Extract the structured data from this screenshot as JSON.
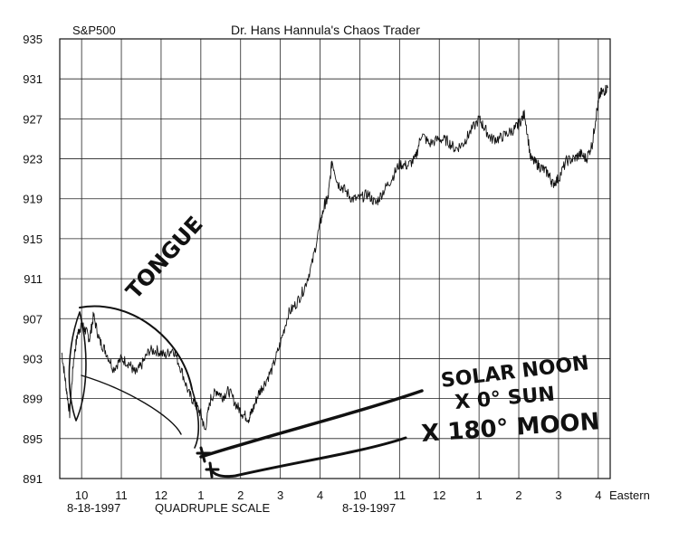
{
  "chart_data": {
    "type": "line",
    "title": "Dr. Hans Hannula's Chaos Trader",
    "instrument": "S&P500",
    "ylim": [
      891,
      935
    ],
    "yticks": [
      935,
      931,
      927,
      923,
      919,
      915,
      911,
      907,
      903,
      899,
      895,
      891
    ],
    "grid": true,
    "xticks": [
      {
        "label": "10",
        "x": 0
      },
      {
        "label": "11",
        "x": 1
      },
      {
        "label": "12",
        "x": 2
      },
      {
        "label": "1",
        "x": 3
      },
      {
        "label": "2",
        "x": 4
      },
      {
        "label": "3",
        "x": 5
      },
      {
        "label": "4",
        "x": 6
      },
      {
        "label": "10",
        "x": 7
      },
      {
        "label": "11",
        "x": 8
      },
      {
        "label": "12",
        "x": 9
      },
      {
        "label": "1",
        "x": 10
      },
      {
        "label": "2",
        "x": 11
      },
      {
        "label": "3",
        "x": 12
      },
      {
        "label": "4",
        "x": 13
      }
    ],
    "xlim": [
      -0.55,
      13.3
    ],
    "x_unit_label": "Eastern",
    "date_labels": [
      "8-18-1997",
      "8-19-1997"
    ],
    "scale_label": "QUADRUPLE SCALE",
    "series": [
      {
        "points": [
          [
            -0.5,
            903.6
          ],
          [
            -0.4,
            900.5
          ],
          [
            -0.3,
            897.5
          ],
          [
            -0.2,
            903.0
          ],
          [
            -0.1,
            905.5
          ],
          [
            0.0,
            906.5
          ],
          [
            0.1,
            905.8
          ],
          [
            0.2,
            905.0
          ],
          [
            0.3,
            907.3
          ],
          [
            0.45,
            904.8
          ],
          [
            0.6,
            903.8
          ],
          [
            0.8,
            902.0
          ],
          [
            1.0,
            903.0
          ],
          [
            1.2,
            902.5
          ],
          [
            1.35,
            901.5
          ],
          [
            1.5,
            902.3
          ],
          [
            1.7,
            903.8
          ],
          [
            1.9,
            903.8
          ],
          [
            2.1,
            903.3
          ],
          [
            2.3,
            904.0
          ],
          [
            2.5,
            902.0
          ],
          [
            2.7,
            899.5
          ],
          [
            2.85,
            898.5
          ],
          [
            3.0,
            897.5
          ],
          [
            3.1,
            895.8
          ],
          [
            3.25,
            899.0
          ],
          [
            3.4,
            899.8
          ],
          [
            3.55,
            899.2
          ],
          [
            3.7,
            899.8
          ],
          [
            3.9,
            898.3
          ],
          [
            4.05,
            897.5
          ],
          [
            4.2,
            897.0
          ],
          [
            4.3,
            897.8
          ],
          [
            4.45,
            899.5
          ],
          [
            4.6,
            900.5
          ],
          [
            4.8,
            902.0
          ],
          [
            5.0,
            904.5
          ],
          [
            5.2,
            907.5
          ],
          [
            5.4,
            908.5
          ],
          [
            5.6,
            910.0
          ],
          [
            5.8,
            912.5
          ],
          [
            6.0,
            916.5
          ],
          [
            6.12,
            918.5
          ],
          [
            6.2,
            919.0
          ],
          [
            6.3,
            922.8
          ],
          [
            6.45,
            920.5
          ],
          [
            6.6,
            920.0
          ],
          [
            6.8,
            919.0
          ],
          [
            7.0,
            919.0
          ],
          [
            7.2,
            919.5
          ],
          [
            7.4,
            918.5
          ],
          [
            7.6,
            919.8
          ],
          [
            7.8,
            921.0
          ],
          [
            8.0,
            922.5
          ],
          [
            8.2,
            922.3
          ],
          [
            8.4,
            923.0
          ],
          [
            8.55,
            925.5
          ],
          [
            8.75,
            924.5
          ],
          [
            9.0,
            925.0
          ],
          [
            9.2,
            924.8
          ],
          [
            9.4,
            924.0
          ],
          [
            9.6,
            924.5
          ],
          [
            9.75,
            925.5
          ],
          [
            10.0,
            927.0
          ],
          [
            10.15,
            926.0
          ],
          [
            10.3,
            925.0
          ],
          [
            10.5,
            925.0
          ],
          [
            10.7,
            925.5
          ],
          [
            10.9,
            926.0
          ],
          [
            11.0,
            926.5
          ],
          [
            11.15,
            927.5
          ],
          [
            11.3,
            923.0
          ],
          [
            11.45,
            922.5
          ],
          [
            11.6,
            922.0
          ],
          [
            11.75,
            921.5
          ],
          [
            11.85,
            920.5
          ],
          [
            12.0,
            921.0
          ],
          [
            12.2,
            922.8
          ],
          [
            12.4,
            923.0
          ],
          [
            12.55,
            923.5
          ],
          [
            12.7,
            923.0
          ],
          [
            12.85,
            924.5
          ],
          [
            12.95,
            927.5
          ],
          [
            13.05,
            929.5
          ],
          [
            13.15,
            929.8
          ],
          [
            13.25,
            930.2
          ]
        ]
      }
    ],
    "annotations": [
      {
        "text": "TONGUE"
      },
      {
        "text": "SOLAR NOON"
      },
      {
        "text": "X 0° SUN"
      },
      {
        "text": "X 180° MOON"
      }
    ]
  }
}
